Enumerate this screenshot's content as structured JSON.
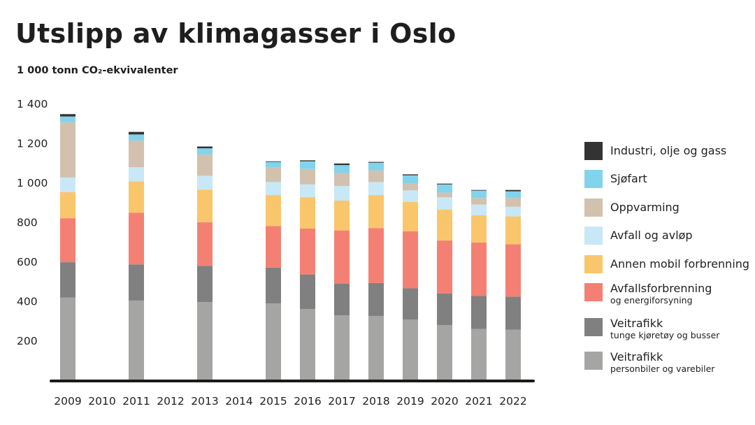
{
  "title": "Utslipp av klimagasser i Oslo",
  "subtitle": "1 000 tonn CO₂-ekvivalenter",
  "chart_data": {
    "type": "bar",
    "stacked": true,
    "title": "Utslipp av klimagasser i Oslo",
    "ylabel": "1 000 tonn CO₂-ekvivalenter",
    "xlabel": "",
    "ylim": [
      0,
      1400
    ],
    "yticks": [
      200,
      400,
      600,
      800,
      1000,
      1200,
      1400
    ],
    "ytick_labels": [
      "200",
      "400",
      "600",
      "800",
      "1 000",
      "1 200",
      "1 400"
    ],
    "grid": false,
    "legend_position": "right",
    "categories": [
      "2009",
      "2010",
      "2011",
      "2012",
      "2013",
      "2014",
      "2015",
      "2016",
      "2017",
      "2018",
      "2019",
      "2020",
      "2021",
      "2022"
    ],
    "series": [
      {
        "name": "Veitrafikk",
        "sub": "personbiler og varebiler",
        "color": "#a5a5a4",
        "values": [
          417,
          null,
          402,
          null,
          394,
          null,
          387,
          359,
          327,
          324,
          305,
          277,
          258,
          254
        ]
      },
      {
        "name": "Veitrafikk",
        "sub": "tunge kjøretøy og busser",
        "color": "#7f807f",
        "values": [
          179,
          null,
          183,
          null,
          184,
          null,
          182,
          175,
          161,
          167,
          159,
          160,
          167,
          168
        ]
      },
      {
        "name": "Avfallsforbrenning",
        "sub": "og energiforsyning",
        "color": "#f48074",
        "values": [
          223,
          null,
          262,
          null,
          221,
          null,
          210,
          233,
          269,
          278,
          289,
          269,
          271,
          265
        ]
      },
      {
        "name": "Annen mobil forbrenning",
        "sub": "",
        "color": "#f9c66c",
        "values": [
          132,
          null,
          159,
          null,
          165,
          null,
          157,
          158,
          151,
          167,
          148,
          156,
          138,
          141
        ]
      },
      {
        "name": "Avfall og avløp",
        "sub": "",
        "color": "#c8e8f7",
        "values": [
          74,
          null,
          71,
          null,
          70,
          null,
          66,
          65,
          74,
          66,
          59,
          63,
          54,
          49
        ]
      },
      {
        "name": "Oppvarming",
        "sub": "",
        "color": "#d1c1ae",
        "values": [
          280,
          null,
          135,
          null,
          108,
          null,
          73,
          78,
          66,
          59,
          34,
          24,
          33,
          44
        ]
      },
      {
        "name": "Sjøfart",
        "sub": "",
        "color": "#82d3ec",
        "values": [
          29,
          null,
          31,
          null,
          31,
          null,
          29,
          39,
          40,
          39,
          42,
          41,
          38,
          34
        ]
      },
      {
        "name": "Industri, olje og gass",
        "sub": "",
        "color": "#333333",
        "values": [
          12,
          null,
          13,
          null,
          9,
          null,
          3,
          5,
          8,
          4,
          5,
          4,
          3,
          7
        ]
      }
    ]
  }
}
